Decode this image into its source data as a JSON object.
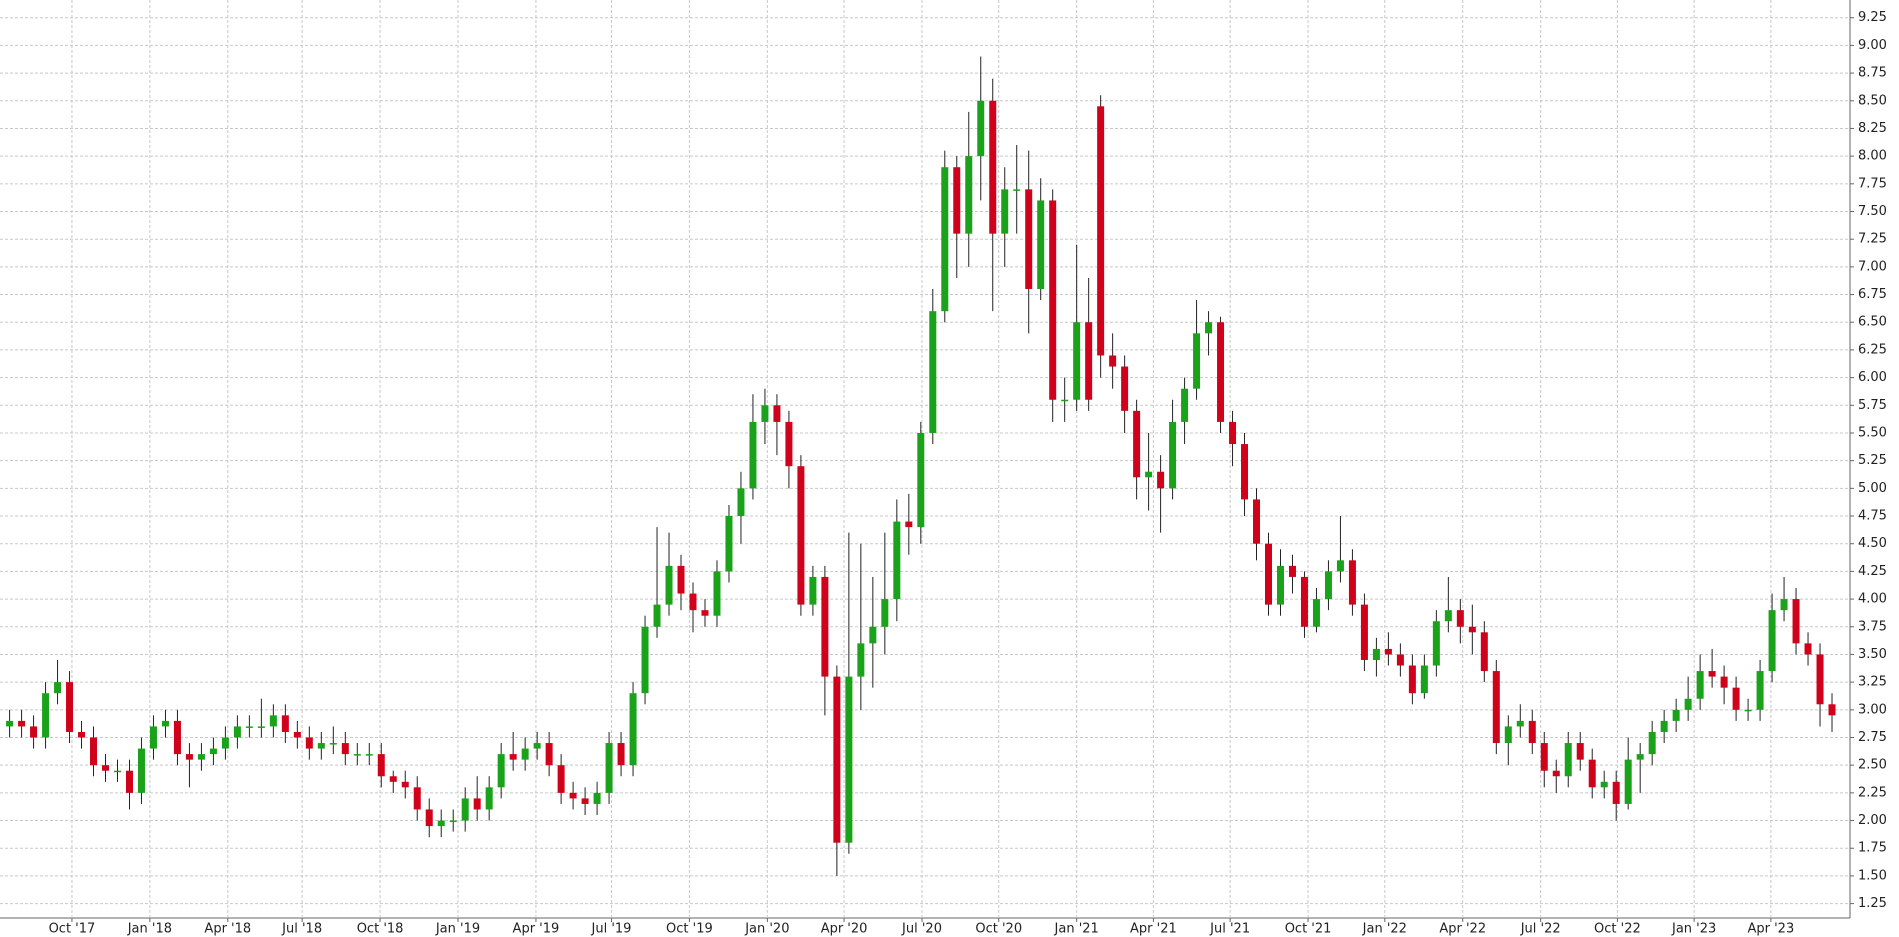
{
  "chart_data": {
    "type": "candlestick",
    "up_color": "#1aa31a",
    "down_color": "#d0021b",
    "grid": true,
    "categories": [
      null,
      null,
      null,
      null,
      null,
      null,
      null,
      null,
      null,
      null,
      null,
      null,
      null,
      null,
      null,
      null,
      null,
      null,
      null,
      null,
      null,
      null,
      null,
      null,
      null,
      null,
      null,
      null,
      null,
      null,
      null,
      null,
      null,
      null,
      null,
      null,
      null,
      null,
      null,
      null,
      null,
      null,
      null,
      null,
      null,
      null,
      null,
      null,
      null,
      null,
      null,
      null,
      null,
      null,
      null,
      null,
      null,
      null,
      null,
      null,
      null,
      null,
      null,
      null,
      null,
      null,
      null,
      null,
      null,
      null,
      null,
      null,
      null,
      null,
      null,
      null,
      null,
      null,
      null,
      null,
      null,
      null,
      null,
      null,
      null,
      null,
      null,
      null,
      null,
      null,
      null,
      null,
      null,
      null,
      null,
      null,
      null,
      null,
      null,
      null,
      null,
      null,
      null,
      null,
      null,
      null,
      null,
      null,
      null,
      null,
      null,
      null,
      null,
      null,
      null,
      null,
      null,
      null,
      null,
      null,
      null,
      null,
      null,
      null,
      null,
      null,
      null,
      null,
      null,
      null,
      null,
      null,
      null,
      null,
      null,
      null,
      null,
      null,
      null,
      null,
      null,
      null,
      null,
      null,
      null,
      null,
      null,
      null,
      null,
      null,
      null,
      null,
      null
    ],
    "open": [
      2.85,
      2.9,
      2.85,
      2.75,
      3.15,
      3.25,
      2.8,
      2.75,
      2.5,
      2.45,
      2.45,
      2.25,
      2.65,
      2.85,
      2.9,
      2.6,
      2.55,
      2.6,
      2.65,
      2.75,
      2.85,
      2.85,
      2.85,
      2.95,
      2.8,
      2.75,
      2.65,
      2.7,
      2.7,
      2.6,
      2.6,
      2.6,
      2.4,
      2.35,
      2.3,
      2.1,
      1.95,
      2.0,
      2.0,
      2.2,
      2.1,
      2.3,
      2.6,
      2.55,
      2.65,
      2.7,
      2.5,
      2.25,
      2.2,
      2.15,
      2.25,
      2.7,
      2.5,
      3.15,
      3.75,
      3.95,
      4.3,
      4.05,
      3.9,
      3.85,
      4.25,
      4.75,
      5.0,
      5.6,
      5.75,
      5.6,
      5.2,
      3.95,
      4.2,
      3.3,
      1.8,
      3.3,
      3.6,
      3.75,
      4.0,
      4.7,
      4.65,
      5.5,
      6.6,
      7.9,
      7.3,
      8.0,
      8.5,
      7.3,
      7.7,
      7.7,
      6.8,
      7.6,
      5.8,
      5.8,
      6.5,
      8.45,
      6.2,
      6.1,
      5.7,
      5.1,
      5.15,
      5.0,
      5.6,
      5.9,
      6.4,
      6.5,
      5.6,
      5.4,
      4.9,
      4.5,
      3.95,
      4.3,
      4.2,
      3.75,
      4.0,
      4.25,
      4.35,
      3.95,
      3.45,
      3.55,
      3.5,
      3.4,
      3.15,
      3.4,
      3.8,
      3.9,
      3.75,
      3.7,
      3.35,
      2.7,
      2.85,
      2.9,
      2.7,
      2.45,
      2.4,
      2.7,
      2.55,
      2.3,
      2.35,
      2.15,
      2.55,
      2.6,
      2.8,
      2.9,
      3.0,
      3.1,
      3.35,
      3.3,
      3.2,
      3.0,
      3.0,
      3.35,
      3.9,
      4.0,
      3.6,
      3.5,
      3.05
    ],
    "high": [
      3.0,
      3.0,
      2.95,
      3.25,
      3.45,
      3.35,
      2.9,
      2.85,
      2.6,
      2.55,
      2.55,
      2.75,
      2.95,
      3.0,
      3.0,
      2.7,
      2.7,
      2.75,
      2.85,
      2.95,
      2.95,
      3.1,
      3.05,
      3.05,
      2.9,
      2.85,
      2.8,
      2.85,
      2.8,
      2.7,
      2.7,
      2.7,
      2.45,
      2.45,
      2.4,
      2.2,
      2.1,
      2.1,
      2.3,
      2.4,
      2.4,
      2.7,
      2.8,
      2.75,
      2.8,
      2.8,
      2.6,
      2.35,
      2.3,
      2.35,
      2.8,
      2.8,
      3.25,
      3.85,
      4.65,
      4.6,
      4.4,
      4.15,
      4.0,
      4.35,
      4.85,
      5.15,
      5.85,
      5.9,
      5.85,
      5.7,
      5.3,
      4.3,
      4.3,
      3.4,
      4.6,
      4.5,
      4.2,
      4.6,
      4.9,
      4.95,
      5.6,
      6.8,
      8.05,
      8.0,
      8.4,
      8.9,
      8.7,
      7.9,
      8.1,
      8.05,
      7.8,
      7.7,
      6.0,
      7.2,
      6.9,
      8.55,
      6.4,
      6.2,
      5.8,
      5.5,
      5.3,
      5.8,
      6.0,
      6.7,
      6.6,
      6.55,
      5.7,
      5.5,
      5.0,
      4.6,
      4.45,
      4.4,
      4.25,
      4.1,
      4.35,
      4.75,
      4.45,
      4.05,
      3.65,
      3.7,
      3.6,
      3.5,
      3.5,
      3.9,
      4.2,
      4.0,
      3.95,
      3.8,
      3.45,
      2.95,
      3.05,
      3.0,
      2.8,
      2.55,
      2.8,
      2.8,
      2.65,
      2.45,
      2.45,
      2.75,
      2.7,
      2.9,
      3.0,
      3.1,
      3.3,
      3.5,
      3.55,
      3.4,
      3.3,
      3.1,
      3.45,
      4.05,
      4.2,
      4.1,
      3.7,
      3.6,
      3.15
    ],
    "low": [
      2.75,
      2.75,
      2.65,
      2.65,
      3.05,
      2.7,
      2.65,
      2.4,
      2.35,
      2.35,
      2.1,
      2.15,
      2.55,
      2.75,
      2.5,
      2.3,
      2.45,
      2.5,
      2.55,
      2.65,
      2.75,
      2.75,
      2.75,
      2.7,
      2.65,
      2.55,
      2.55,
      2.6,
      2.5,
      2.5,
      2.5,
      2.3,
      2.25,
      2.2,
      2.0,
      1.85,
      1.85,
      1.9,
      1.9,
      2.0,
      2.0,
      2.2,
      2.45,
      2.45,
      2.55,
      2.4,
      2.15,
      2.1,
      2.05,
      2.05,
      2.15,
      2.4,
      2.4,
      3.05,
      3.65,
      3.85,
      3.9,
      3.7,
      3.75,
      3.75,
      4.15,
      4.5,
      4.9,
      5.4,
      5.3,
      5.0,
      3.85,
      3.85,
      2.95,
      1.5,
      1.7,
      3.0,
      3.2,
      3.5,
      3.8,
      4.4,
      4.5,
      5.4,
      6.5,
      6.9,
      7.0,
      7.6,
      6.6,
      7.0,
      7.3,
      6.4,
      6.7,
      5.6,
      5.6,
      5.7,
      5.7,
      6.0,
      5.9,
      5.5,
      4.9,
      4.8,
      4.6,
      4.9,
      5.4,
      5.8,
      6.2,
      5.5,
      5.2,
      4.75,
      4.35,
      3.85,
      3.85,
      4.05,
      3.65,
      3.7,
      3.9,
      4.15,
      3.85,
      3.35,
      3.3,
      3.4,
      3.3,
      3.05,
      3.1,
      3.3,
      3.7,
      3.6,
      3.5,
      3.25,
      2.6,
      2.5,
      2.75,
      2.6,
      2.3,
      2.25,
      2.3,
      2.45,
      2.2,
      2.2,
      2.0,
      2.1,
      2.25,
      2.5,
      2.7,
      2.8,
      2.9,
      3.0,
      3.2,
      3.05,
      2.9,
      2.9,
      2.9,
      3.25,
      3.8,
      3.5,
      3.4,
      2.85,
      2.8
    ],
    "close": [
      2.9,
      2.85,
      2.75,
      3.15,
      3.25,
      2.8,
      2.75,
      2.5,
      2.45,
      2.45,
      2.25,
      2.65,
      2.85,
      2.9,
      2.6,
      2.55,
      2.6,
      2.65,
      2.75,
      2.85,
      2.85,
      2.85,
      2.95,
      2.8,
      2.75,
      2.65,
      2.7,
      2.7,
      2.6,
      2.6,
      2.6,
      2.4,
      2.35,
      2.3,
      2.1,
      1.95,
      2.0,
      2.0,
      2.2,
      2.1,
      2.3,
      2.6,
      2.55,
      2.65,
      2.7,
      2.5,
      2.25,
      2.2,
      2.15,
      2.25,
      2.7,
      2.5,
      3.15,
      3.75,
      3.95,
      4.3,
      4.05,
      3.9,
      3.85,
      4.25,
      4.75,
      5.0,
      5.6,
      5.75,
      5.6,
      5.2,
      3.95,
      4.2,
      3.3,
      1.8,
      3.3,
      3.6,
      3.75,
      4.0,
      4.7,
      4.65,
      5.5,
      6.6,
      7.9,
      7.3,
      8.0,
      8.5,
      7.3,
      7.7,
      7.7,
      6.8,
      7.6,
      5.8,
      5.8,
      6.5,
      5.8,
      6.2,
      6.1,
      5.7,
      5.1,
      5.15,
      5.0,
      5.6,
      5.9,
      6.4,
      6.5,
      5.6,
      5.4,
      4.9,
      4.5,
      3.95,
      4.3,
      4.2,
      3.75,
      4.0,
      4.25,
      4.35,
      3.95,
      3.45,
      3.55,
      3.5,
      3.4,
      3.15,
      3.4,
      3.8,
      3.9,
      3.75,
      3.7,
      3.35,
      2.7,
      2.85,
      2.9,
      2.7,
      2.45,
      2.4,
      2.7,
      2.55,
      2.3,
      2.35,
      2.15,
      2.55,
      2.6,
      2.8,
      2.9,
      3.0,
      3.1,
      3.35,
      3.3,
      3.2,
      3.0,
      3.0,
      3.35,
      3.9,
      4.0,
      3.6,
      3.5,
      3.05,
      2.95
    ],
    "ylim": [
      1.12,
      9.41
    ],
    "yticks": [
      1.25,
      {
        "value": 1.5,
        "label": "1.50"
      },
      1.75,
      {
        "value": 2,
        "label": "2.00"
      },
      2.25,
      {
        "value": 2.5,
        "label": "2.50"
      },
      2.75,
      {
        "value": 3,
        "label": "3.00"
      },
      3.25,
      {
        "value": 3.5,
        "label": "3.50"
      },
      3.75,
      {
        "value": 4,
        "label": "4.00"
      },
      4.25,
      {
        "value": 4.5,
        "label": "4.50"
      },
      4.75,
      {
        "value": 5,
        "label": "5.00"
      },
      5.25,
      {
        "value": 5.5,
        "label": "5.50"
      },
      5.75,
      {
        "value": 6,
        "label": "6.00"
      },
      6.25,
      {
        "value": 6.5,
        "label": "6.50"
      },
      6.75,
      {
        "value": 7,
        "label": "7.00"
      },
      7.25,
      {
        "value": 7.5,
        "label": "7.50"
      },
      7.75,
      {
        "value": 8,
        "label": "8.00"
      },
      8.25,
      {
        "value": 8.5,
        "label": "8.50"
      },
      8.75,
      {
        "value": 9,
        "label": "9.00"
      },
      9.25
    ],
    "xlim": [
      -0.8,
      153.5
    ],
    "xticks": [
      {
        "value": 5.2,
        "label": "Oct '17"
      },
      {
        "value": 11.7,
        "label": "Jan '18"
      },
      {
        "value": 18.2,
        "label": "Apr '18"
      },
      {
        "value": 24.4,
        "label": "Jul '18"
      },
      {
        "value": 30.9,
        "label": "Oct '18"
      },
      {
        "value": 37.4,
        "label": "Jan '19"
      },
      {
        "value": 43.9,
        "label": "Apr '19"
      },
      {
        "value": 50.2,
        "label": "Jul '19"
      },
      {
        "value": 56.7,
        "label": "Oct '19"
      },
      {
        "value": 63.2,
        "label": "Jan '20"
      },
      {
        "value": 69.6,
        "label": "Apr '20"
      },
      {
        "value": 76.1,
        "label": "Jul '20"
      },
      {
        "value": 82.5,
        "label": "Oct '20"
      },
      {
        "value": 89,
        "label": "Jan '21"
      },
      {
        "value": 95.4,
        "label": "Apr '21"
      },
      {
        "value": 101.8,
        "label": "Jul '21"
      },
      {
        "value": 108.3,
        "label": "Oct '21"
      },
      {
        "value": 114.7,
        "label": "Jan '22"
      },
      {
        "value": 121.2,
        "label": "Apr '22"
      },
      {
        "value": 127.7,
        "label": "Jul '22"
      },
      {
        "value": 134.1,
        "label": "Oct '22"
      },
      {
        "value": 140.5,
        "label": "Jan '23"
      },
      {
        "value": 146.9,
        "label": "Apr '23"
      }
    ]
  }
}
